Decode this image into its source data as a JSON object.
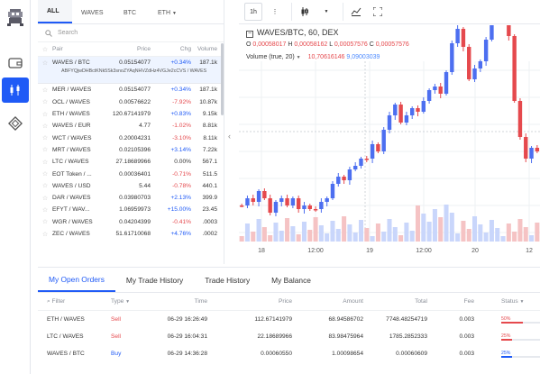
{
  "colors": {
    "accent": "#1f5af6",
    "up": "#1f5af6",
    "down": "#e5494d"
  },
  "sidebar": {
    "icons": [
      "app-logo-icon",
      "wallet-icon",
      "candles-icon",
      "dex-icon"
    ]
  },
  "market": {
    "tabs": [
      "ALL",
      "WAVES",
      "BTC",
      "ETH"
    ],
    "search_placeholder": "Search",
    "headers": {
      "pair": "Pair",
      "price": "Price",
      "chg": "Chg",
      "volume": "Volume"
    },
    "selected_address": "ABFYQjwDHBctKNk5Sk3snoZYAqNHVZdHz4VGJe2cCVS / WAVES",
    "rows": [
      {
        "pair": "WAVES / BTC",
        "price": "0.05154077",
        "chg": "+0.34%",
        "vol": "187.1k",
        "dir": "pos"
      },
      {
        "pair": "MER / WAVES",
        "price": "0.05154077",
        "chg": "+0.34%",
        "vol": "187.1k",
        "dir": "pos"
      },
      {
        "pair": "OCL / WAVES",
        "price": "0.00576622",
        "chg": "-7.92%",
        "vol": "10.87k",
        "dir": "neg"
      },
      {
        "pair": "ETH / WAVES",
        "price": "120.67141979",
        "chg": "+0.83%",
        "vol": "9.15k",
        "dir": "pos"
      },
      {
        "pair": "WAVES / EUR",
        "price": "4.77",
        "chg": "-1.02%",
        "vol": "8.81k",
        "dir": "neg"
      },
      {
        "pair": "WCT / WAVES",
        "price": "0.20004231",
        "chg": "-3.10%",
        "vol": "8.11k",
        "dir": "neg"
      },
      {
        "pair": "MRT / WAVES",
        "price": "0.02105396",
        "chg": "+3.14%",
        "vol": "7.22k",
        "dir": "pos"
      },
      {
        "pair": "LTC / WAVES",
        "price": "27.18689966",
        "chg": "0.00%",
        "vol": "567.1",
        "dir": "zero"
      },
      {
        "pair": "EOT Token / ...",
        "price": "0.00036401",
        "chg": "-0.71%",
        "vol": "511.5",
        "dir": "neg"
      },
      {
        "pair": "WAVES / USD",
        "price": "5.44",
        "chg": "-0.78%",
        "vol": "440.1",
        "dir": "neg"
      },
      {
        "pair": "DAR / WAVES",
        "price": "0.03980703",
        "chg": "+2.13%",
        "vol": "399.9",
        "dir": "pos"
      },
      {
        "pair": "EFYT / WAV...",
        "price": "1.06959973",
        "chg": "+15.00%",
        "vol": "23.45",
        "dir": "pos"
      },
      {
        "pair": "WGR / WAVES",
        "price": "0.04204399",
        "chg": "-0.41%",
        "vol": ".0003",
        "dir": "neg"
      },
      {
        "pair": "ZEC / WAVES",
        "price": "51.61710068",
        "chg": "+4.76%",
        "vol": ".0002",
        "dir": "pos"
      }
    ]
  },
  "chart_toolbar": {
    "interval": "1h"
  },
  "chart": {
    "symbol": "WAVES/BTC, 60, DEX",
    "ohlc": {
      "o": "0,00058017",
      "h": "0,00058162",
      "l": "0,00057576",
      "c": "0,00057576"
    },
    "volume_label": "Volume (true, 20)",
    "volume_val1": "10,70616146",
    "volume_val2": "9,09003039",
    "x_ticks": [
      "18",
      "12:00",
      "19",
      "12:00",
      "20",
      "12"
    ]
  },
  "orders": {
    "tabs": [
      "My Open Orders",
      "My Trade History",
      "Trade History",
      "My Balance"
    ],
    "headers": {
      "filter": "Filter",
      "type": "Type",
      "time": "Time",
      "price": "Price",
      "amount": "Amount",
      "total": "Total",
      "fee": "Fee",
      "status": "Status"
    },
    "rows": [
      {
        "pair": "ETH / WAVES",
        "type": "Sell",
        "time": "06-29 16:26:49",
        "price": "112.67141979",
        "amount": "68.94586702",
        "total": "7748.48254719",
        "fee": "0.003",
        "status": "50%",
        "fill": 0.5
      },
      {
        "pair": "LTC / WAVES",
        "type": "Sell",
        "time": "06-29 16:04:31",
        "price": "22.18689966",
        "amount": "83.98475964",
        "total": "1785.2852333",
        "fee": "0.003",
        "status": "25%",
        "fill": 0.25
      },
      {
        "pair": "WAVES / BTC",
        "type": "Buy",
        "time": "06-29 14:36:28",
        "price": "0.00060550",
        "amount": "1.00098654",
        "total": "0.00060609",
        "fee": "0.003",
        "status": "25%",
        "fill": 0.25
      }
    ]
  }
}
